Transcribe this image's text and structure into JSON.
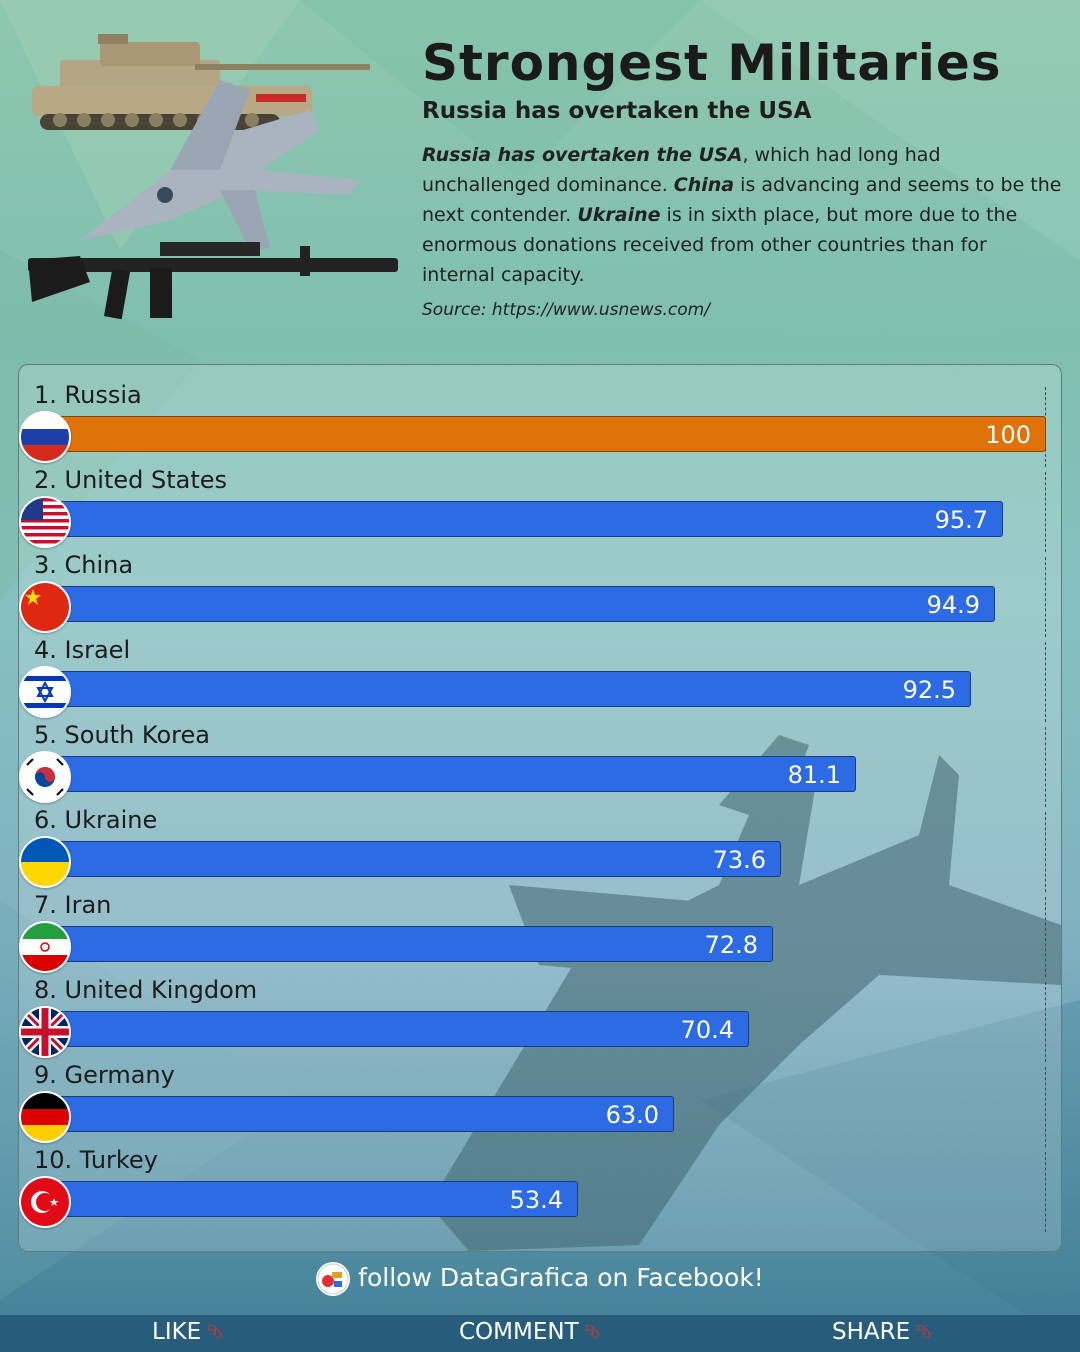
{
  "header": {
    "title": "Strongest Militaries",
    "subtitle": "Russia has overtaken the USA",
    "description": {
      "p1_em": "Russia has overtaken the USA",
      "p1": ", which had long had unchallenged dominance. ",
      "p2_em": "China",
      "p2": " is advancing and seems to be the next contender. ",
      "p3_em": "Ukraine",
      "p3": " is in sixth place, but more due to the enormous donations received from other countries than for internal capacity."
    },
    "source": "Source: https://www.usnews.com/"
  },
  "chart_data": {
    "type": "bar",
    "orientation": "horizontal",
    "categories": [
      "1. Russia",
      "2. United States",
      "3. China",
      "4. Israel",
      "5. South Korea",
      "6. Ukraine",
      "7. Iran",
      "8. United Kingdom",
      "9. Germany",
      "10. Turkey"
    ],
    "values": [
      100,
      95.7,
      94.9,
      92.5,
      81.1,
      73.6,
      72.8,
      70.4,
      63.0,
      53.4
    ],
    "value_labels": [
      "100",
      "95.7",
      "94.9",
      "92.5",
      "81.1",
      "73.6",
      "72.8",
      "70.4",
      "63.0",
      "53.4"
    ],
    "flags": [
      "russia",
      "usa",
      "china",
      "israel",
      "south-korea",
      "ukraine",
      "iran",
      "uk",
      "germany",
      "turkey"
    ],
    "xlim": [
      0,
      100
    ],
    "highlight_color": "#e0720a",
    "bar_color": "#2d6be4"
  },
  "footer": {
    "follow": "follow DataGrafica on Facebook!",
    "like": "LIKE",
    "comment": "COMMENT",
    "share": "SHARE"
  }
}
